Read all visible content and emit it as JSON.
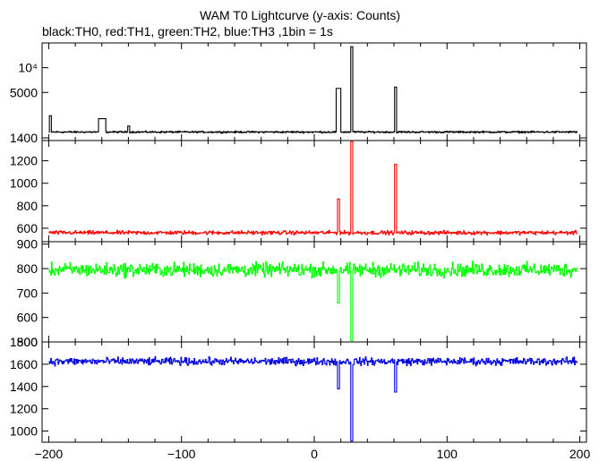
{
  "figure": {
    "title": "WAM T0 Lightcurve (y-axis: Counts)",
    "subtitle": "black:TH0, red:TH1, green:TH2, blue:TH3 ,1bin = 1s"
  },
  "chart_data": {
    "type": "line",
    "title": "WAM T0 Lightcurve (y-axis: Counts)",
    "subtitle": "black:TH0, red:TH1, green:TH2, blue:TH3 ,1bin = 1s",
    "xlim": [
      -205,
      205
    ],
    "x_ticks": [
      -200,
      -100,
      0,
      100,
      200
    ],
    "x_tick_labels": [
      "−200",
      "−100",
      "0",
      "100",
      "200"
    ],
    "x_range_data": [
      -200,
      198
    ],
    "bin_seconds": 1,
    "panels": [
      {
        "series": "TH0",
        "color": "#000000",
        "scale": "log",
        "ylim": [
          1300,
          20000
        ],
        "y_ticks": [
          1400,
          5000,
          10000
        ],
        "y_tick_labels": [
          "1400",
          "5000",
          "10⁴"
        ],
        "baseline": 1650,
        "noise": 35,
        "features": [
          {
            "x": -199,
            "width": 1,
            "value": 2600
          },
          {
            "x": -160,
            "width": 3,
            "value": 2400
          },
          {
            "x": -140,
            "width": 1,
            "value": 1950
          },
          {
            "x": 18,
            "width": 2,
            "value": 5600
          },
          {
            "x": 28,
            "width": 1,
            "value": 18000
          },
          {
            "x": 61,
            "width": 1,
            "value": 5800
          }
        ]
      },
      {
        "series": "TH1",
        "color": "#ff0000",
        "scale": "linear",
        "ylim": [
          480,
          1380
        ],
        "y_ticks": [
          600,
          800,
          1000,
          1200
        ],
        "y_tick_labels": [
          "600",
          "800",
          "1000",
          "1200"
        ],
        "baseline": 560,
        "noise": 15,
        "features": [
          {
            "x": 18,
            "width": 1,
            "value": 860
          },
          {
            "x": 28,
            "width": 1,
            "value": 1370
          },
          {
            "x": 61,
            "width": 1,
            "value": 1170
          }
        ]
      },
      {
        "series": "TH2",
        "color": "#00ff00",
        "scale": "linear",
        "ylim": [
          500,
          910
        ],
        "y_ticks": [
          500,
          600,
          700,
          800,
          900
        ],
        "y_tick_labels": [
          "500",
          "600",
          "700",
          "800",
          "900"
        ],
        "baseline": 795,
        "noise": 25,
        "features": [
          {
            "x": 18,
            "width": 1,
            "value": 660
          },
          {
            "x": 28,
            "width": 1,
            "value": 505
          }
        ]
      },
      {
        "series": "TH3",
        "color": "#0000dd",
        "scale": "linear",
        "ylim": [
          900,
          1800
        ],
        "y_ticks": [
          1000,
          1200,
          1400,
          1600,
          1800
        ],
        "y_tick_labels": [
          "1000",
          "1200",
          "1400",
          "1600",
          "1800"
        ],
        "baseline": 1625,
        "noise": 30,
        "features": [
          {
            "x": 18,
            "width": 1,
            "value": 1380
          },
          {
            "x": 28,
            "width": 1,
            "value": 910
          },
          {
            "x": 61,
            "width": 1,
            "value": 1350
          }
        ]
      }
    ]
  }
}
